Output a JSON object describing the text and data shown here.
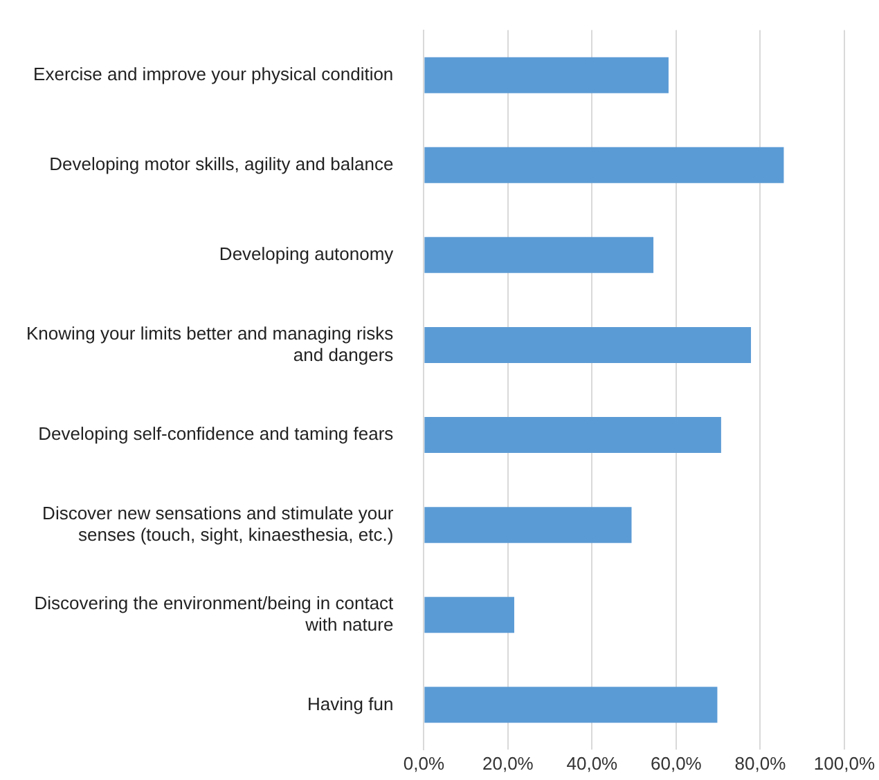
{
  "chart_data": {
    "type": "bar",
    "orientation": "horizontal",
    "categories": [
      "Exercise and improve your physical condition",
      "Developing motor skills, agility and balance",
      "Developing autonomy",
      "Knowing your limits better and managing risks and dangers",
      "Developing self-confidence and taming fears",
      "Discover new sensations and stimulate your senses (touch, sight, kinaesthesia, etc.)",
      "Discovering the environment/being in contact with nature",
      "Having fun"
    ],
    "values": [
      58.2,
      85.6,
      54.6,
      77.8,
      70.7,
      49.4,
      21.5,
      69.8
    ],
    "color": "#5b9bd5",
    "xlim": [
      0,
      100
    ],
    "xticks": [
      {
        "value": 0,
        "label": "0,0%"
      },
      {
        "value": 20,
        "label": "20,0%"
      },
      {
        "value": 40,
        "label": "40,0%"
      },
      {
        "value": 60,
        "label": "60,0%"
      },
      {
        "value": 80,
        "label": "80,0%"
      },
      {
        "value": 100,
        "label": "100,0%"
      }
    ],
    "grid": "x"
  }
}
